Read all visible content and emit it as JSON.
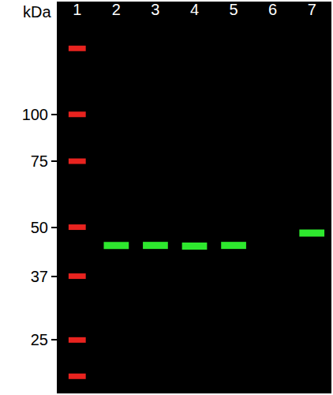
{
  "chart_data": {
    "type": "blot",
    "y_label": "kDa",
    "categories": [
      "1",
      "2",
      "3",
      "4",
      "5",
      "6",
      "7"
    ],
    "series": [
      {
        "color": "#e8231f",
        "x": [
          "1",
          "1",
          "1",
          "1",
          "1",
          "1",
          "1"
        ],
        "values": [
          150,
          100,
          75,
          50,
          37,
          25,
          20
        ]
      },
      {
        "color": "#2ee82e",
        "x": [
          "2",
          "3",
          "4",
          "5",
          "7"
        ],
        "values": [
          44.7,
          44.7,
          44.5,
          44.7,
          48.2
        ]
      }
    ],
    "ylim": [
      18,
      200
    ],
    "yticks": [
      100,
      75,
      50,
      37,
      25
    ],
    "log": "y",
    "grid": false
  }
}
